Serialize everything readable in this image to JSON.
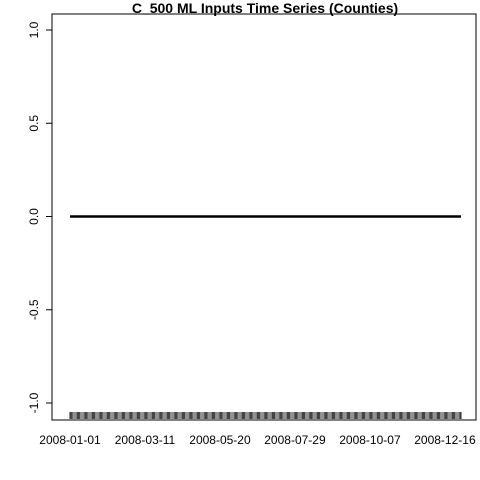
{
  "chart_data": {
    "type": "line",
    "title": "C_500 ML Inputs Time Series (Counties)",
    "xlabel": "",
    "ylabel": "",
    "x_tick_labels": [
      "2008-01-01",
      "2008-03-11",
      "2008-05-20",
      "2008-07-29",
      "2008-10-07",
      "2008-12-16"
    ],
    "x_range": [
      "2008-01-01",
      "2008-12-31"
    ],
    "ylim": [
      -1.0,
      1.0
    ],
    "y_ticks": [
      -1.0,
      -0.5,
      0.0,
      0.5,
      1.0
    ],
    "y_tick_labels": [
      "-1.0",
      "-0.5",
      "0.0",
      "0.5",
      "1.0"
    ],
    "series": [
      {
        "x": [
          "2008-01-01",
          "2008-12-31"
        ],
        "values": [
          0.0,
          0.0
        ],
        "color": "#000000"
      }
    ],
    "rug": {
      "start": "2008-01-01",
      "end": "2008-12-31",
      "color": "#555555"
    },
    "grid": false,
    "legend": "none"
  }
}
